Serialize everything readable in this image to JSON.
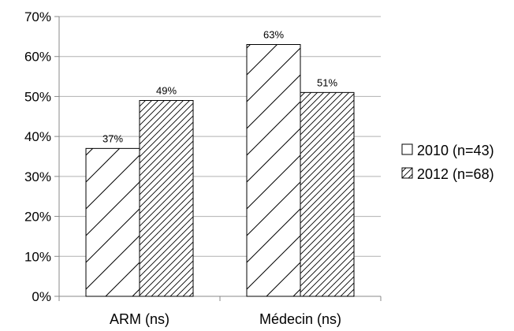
{
  "chart_data": {
    "type": "bar",
    "categories": [
      "ARM (ns)",
      "Médecin (ns)"
    ],
    "series": [
      {
        "name": "2010 (n=43)",
        "values": [
          37,
          63
        ],
        "pattern": "sparse-diagonal-hatch"
      },
      {
        "name": "2012 (n=68)",
        "values": [
          49,
          51
        ],
        "pattern": "dense-diagonal-hatch"
      }
    ],
    "data_labels": [
      [
        "37%",
        "63%"
      ],
      [
        "49%",
        "51%"
      ]
    ],
    "y_ticks": [
      "0%",
      "10%",
      "20%",
      "30%",
      "40%",
      "50%",
      "60%",
      "70%"
    ],
    "ylim": [
      0,
      70
    ],
    "y_unit": "%",
    "grid": true,
    "legend_position": "right",
    "colors": {
      "bar_fill": "#ffffff",
      "stroke": "#000000",
      "grid": "#b0b0b0"
    }
  }
}
